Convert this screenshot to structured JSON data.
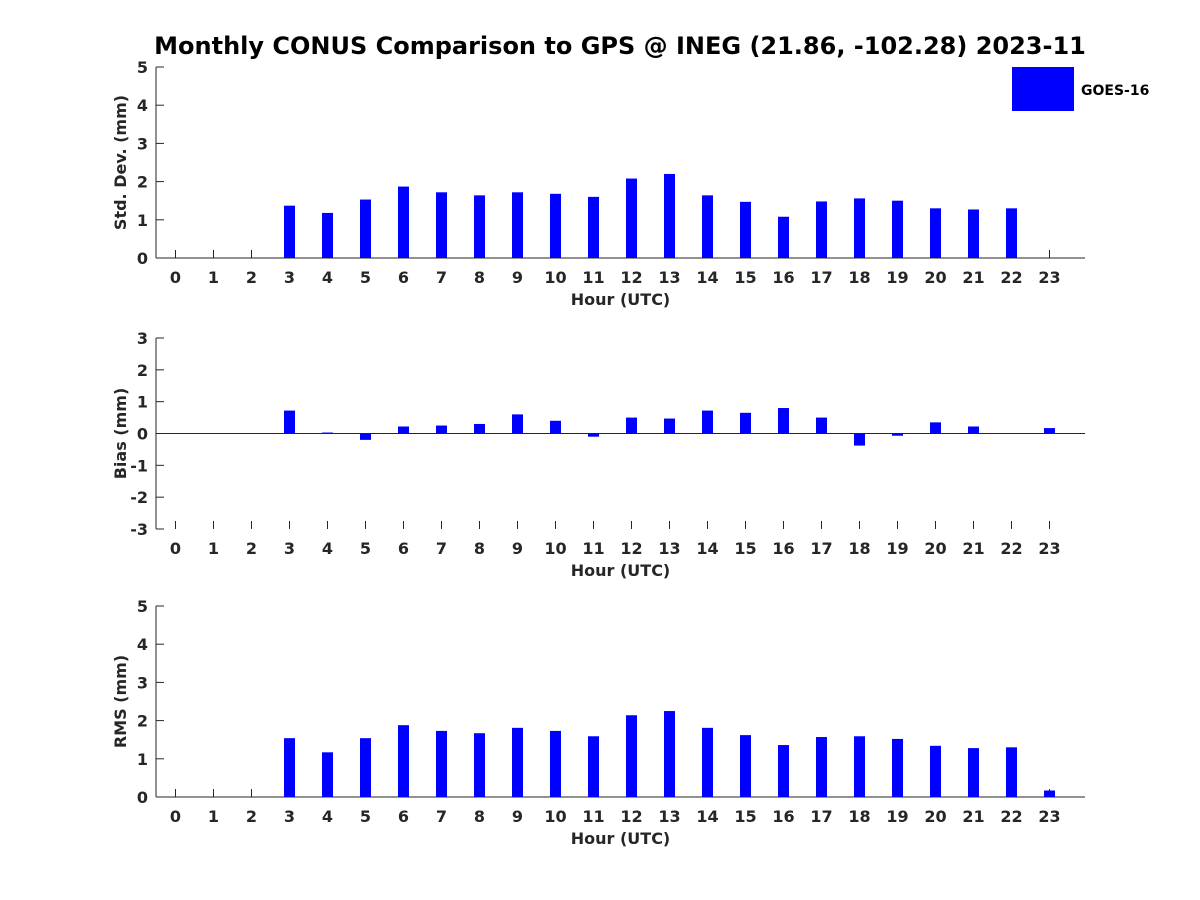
{
  "title": "Monthly CONUS Comparison to GPS @ INEG (21.86, -102.28) 2023-11",
  "legend": {
    "label": "GOES-16",
    "color": "#0000ff"
  },
  "chart_data": [
    {
      "type": "bar",
      "ylabel": "Std. Dev. (mm)",
      "xlabel": "Hour (UTC)",
      "ylim": [
        0,
        5
      ],
      "yticks": [
        "0",
        "1",
        "2",
        "3",
        "4",
        "5"
      ],
      "categories": [
        "0",
        "1",
        "2",
        "3",
        "4",
        "5",
        "6",
        "7",
        "8",
        "9",
        "10",
        "11",
        "12",
        "13",
        "14",
        "15",
        "16",
        "17",
        "18",
        "19",
        "20",
        "21",
        "22",
        "23"
      ],
      "series": [
        {
          "name": "GOES-16",
          "values": [
            null,
            null,
            null,
            1.37,
            1.18,
            1.53,
            1.87,
            1.72,
            1.64,
            1.72,
            1.68,
            1.6,
            2.08,
            2.2,
            1.64,
            1.47,
            1.08,
            1.48,
            1.56,
            1.5,
            1.3,
            1.27,
            1.3,
            null
          ]
        }
      ]
    },
    {
      "type": "bar",
      "ylabel": "Bias (mm)",
      "xlabel": "Hour (UTC)",
      "ylim": [
        -3,
        3
      ],
      "yticks": [
        "-3",
        "-2",
        "-1",
        "0",
        "1",
        "2",
        "3"
      ],
      "categories": [
        "0",
        "1",
        "2",
        "3",
        "4",
        "5",
        "6",
        "7",
        "8",
        "9",
        "10",
        "11",
        "12",
        "13",
        "14",
        "15",
        "16",
        "17",
        "18",
        "19",
        "20",
        "21",
        "22",
        "23"
      ],
      "series": [
        {
          "name": "GOES-16",
          "values": [
            null,
            null,
            null,
            0.72,
            0.03,
            -0.2,
            0.22,
            0.25,
            0.3,
            0.6,
            0.4,
            -0.1,
            0.5,
            0.47,
            0.72,
            0.65,
            0.8,
            0.5,
            -0.38,
            -0.07,
            0.35,
            0.22,
            null,
            0.17
          ]
        }
      ]
    },
    {
      "type": "bar",
      "ylabel": "RMS (mm)",
      "xlabel": "Hour (UTC)",
      "ylim": [
        0,
        5
      ],
      "yticks": [
        "0",
        "1",
        "2",
        "3",
        "4",
        "5"
      ],
      "categories": [
        "0",
        "1",
        "2",
        "3",
        "4",
        "5",
        "6",
        "7",
        "8",
        "9",
        "10",
        "11",
        "12",
        "13",
        "14",
        "15",
        "16",
        "17",
        "18",
        "19",
        "20",
        "21",
        "22",
        "23"
      ],
      "series": [
        {
          "name": "GOES-16",
          "values": [
            null,
            null,
            null,
            1.54,
            1.17,
            1.54,
            1.88,
            1.73,
            1.67,
            1.81,
            1.73,
            1.59,
            2.14,
            2.25,
            1.81,
            1.62,
            1.36,
            1.57,
            1.59,
            1.52,
            1.34,
            1.28,
            1.3,
            0.17
          ]
        }
      ]
    }
  ]
}
